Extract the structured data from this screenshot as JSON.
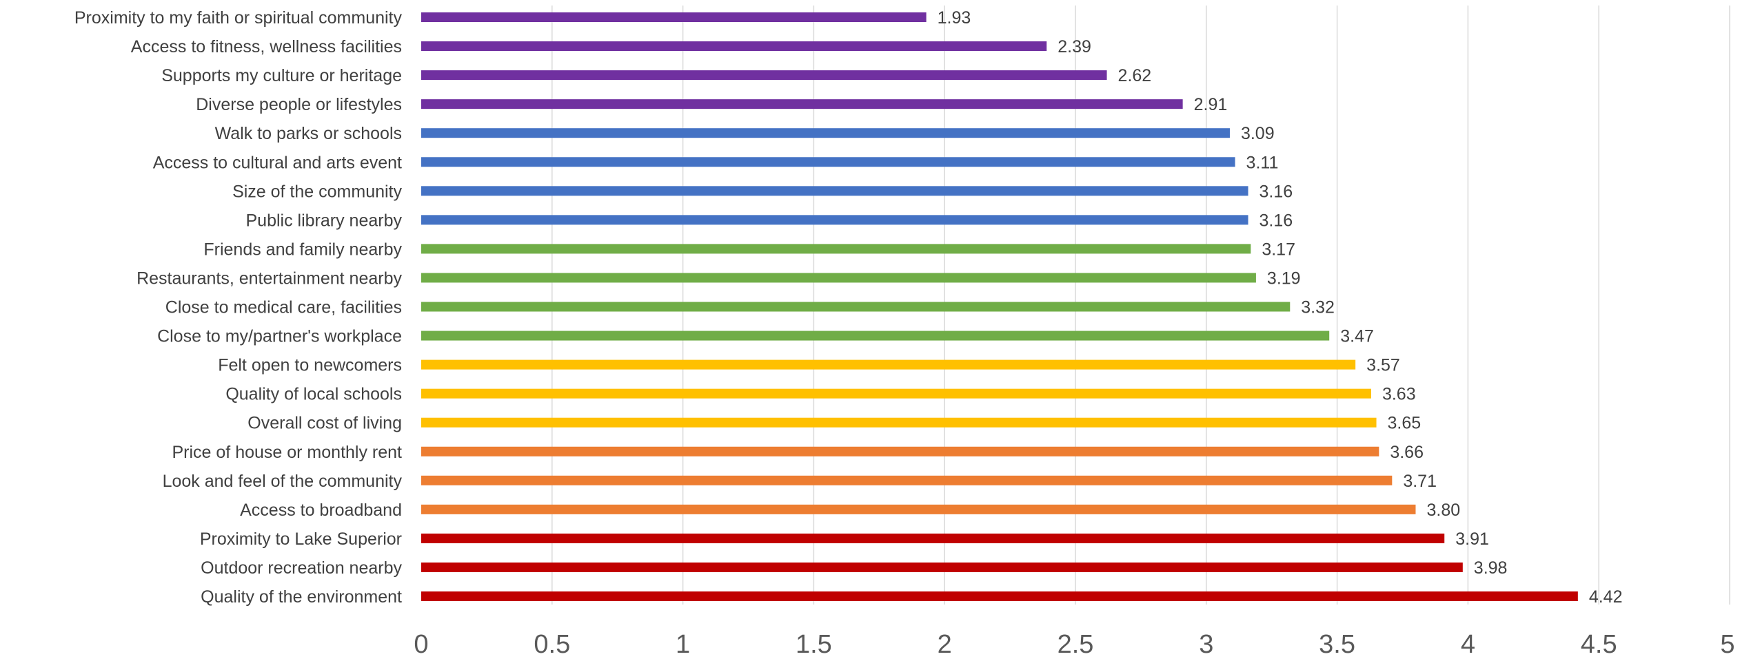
{
  "chart_data": {
    "type": "bar",
    "orientation": "horizontal",
    "title": "",
    "xlabel": "",
    "ylabel": "",
    "xlim": [
      0,
      5
    ],
    "x_ticks": [
      "0",
      "0.5",
      "1",
      "1.5",
      "2",
      "2.5",
      "3",
      "3.5",
      "4",
      "4.5",
      "5"
    ],
    "grid": "vertical",
    "legend": "none",
    "categories": [
      "Proximity to my faith or spiritual community",
      "Access to fitness, wellness facilities",
      "Supports my culture or heritage",
      "Diverse people or lifestyles",
      "Walk to parks or schools",
      "Access to cultural and arts event",
      "Size of the community",
      "Public library nearby",
      "Friends and family nearby",
      "Restaurants, entertainment nearby",
      "Close to medical care, facilities",
      "Close to my/partner's workplace",
      "Felt open to newcomers",
      "Quality of local schools",
      "Overall cost of living",
      "Price of house or monthly rent",
      "Look and feel of the community",
      "Access to broadband",
      "Proximity to Lake Superior",
      "Outdoor recreation nearby",
      "Quality of the environment"
    ],
    "values": [
      1.93,
      2.39,
      2.62,
      2.91,
      3.09,
      3.11,
      3.16,
      3.16,
      3.17,
      3.19,
      3.32,
      3.47,
      3.57,
      3.63,
      3.65,
      3.66,
      3.71,
      3.8,
      3.91,
      3.98,
      4.42
    ],
    "value_labels": [
      "1.93",
      "2.39",
      "2.62",
      "2.91",
      "3.09",
      "3.11",
      "3.16",
      "3.16",
      "3.17",
      "3.19",
      "3.32",
      "3.47",
      "3.57",
      "3.63",
      "3.65",
      "3.66",
      "3.71",
      "3.80",
      "3.91",
      "3.98",
      "4.42"
    ],
    "bar_colors": [
      "#7030a0",
      "#7030a0",
      "#7030a0",
      "#7030a0",
      "#4472c4",
      "#4472c4",
      "#4472c4",
      "#4472c4",
      "#70ad47",
      "#70ad47",
      "#70ad47",
      "#70ad47",
      "#ffc000",
      "#ffc000",
      "#ffc000",
      "#ed7d31",
      "#ed7d31",
      "#ed7d31",
      "#c00000",
      "#c00000",
      "#c00000"
    ]
  }
}
